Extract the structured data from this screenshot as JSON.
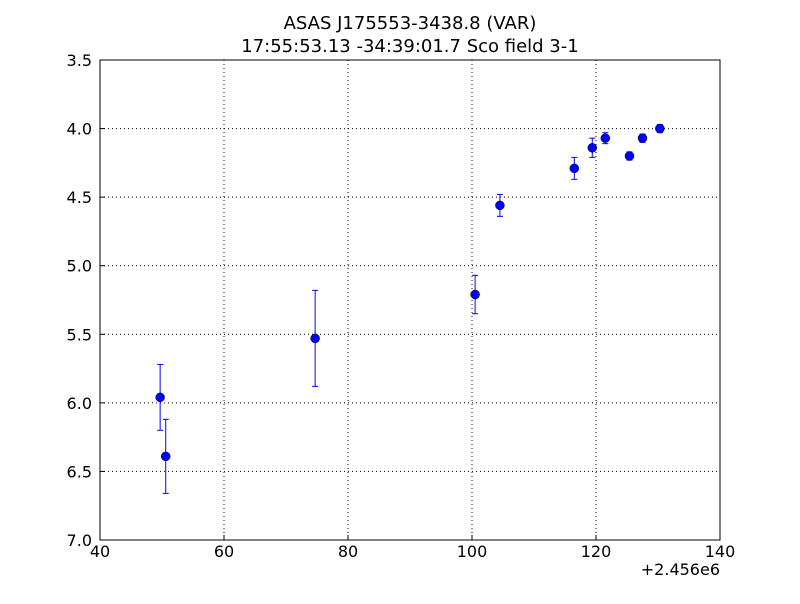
{
  "chart_data": {
    "type": "errorbar",
    "title": "ASAS J175553-3438.8  (VAR)",
    "subtitle": "17:55:53.13 -34:39:01.7 Sco field 3-1",
    "x_offset_label": "+2.456e6",
    "series": [
      {
        "color": "#0000ff",
        "x": [
          49.7,
          50.6,
          74.7,
          100.5,
          104.5,
          116.5,
          119.4,
          121.5,
          125.4,
          127.5,
          130.3
        ],
        "values": [
          5.96,
          6.39,
          5.53,
          5.21,
          4.56,
          4.29,
          4.14,
          4.07,
          4.2,
          4.07,
          4.0
        ],
        "errors": [
          0.24,
          0.27,
          0.35,
          0.14,
          0.08,
          0.08,
          0.07,
          0.04,
          0.03,
          0.03,
          0.03
        ]
      }
    ],
    "xlim": [
      40,
      140
    ],
    "xticks": [
      40,
      60,
      80,
      100,
      120,
      140
    ],
    "ylim": [
      7.0,
      3.5
    ],
    "yticks": [
      3.5,
      {
        "value": 4,
        "label": "4.0"
      },
      4.5,
      {
        "value": 5,
        "label": "5.0"
      },
      5.5,
      {
        "value": 6,
        "label": "6.0"
      },
      6.5,
      {
        "value": 7,
        "label": "7.0"
      }
    ],
    "grid": true
  }
}
